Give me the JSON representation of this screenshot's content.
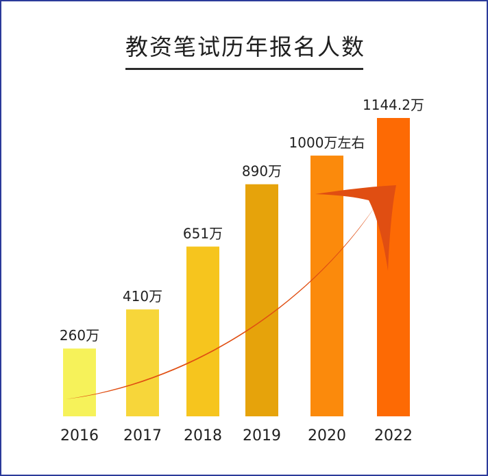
{
  "chart_data": {
    "type": "bar",
    "title": "教资笔试历年报名人数",
    "categories": [
      "2016",
      "2017",
      "2018",
      "2019",
      "2020",
      "2022"
    ],
    "values": [
      260,
      410,
      651,
      890,
      1000,
      1144.2
    ],
    "data_labels": [
      "260万",
      "410万",
      "651万",
      "890万",
      "1000万左右",
      "1144.2万"
    ],
    "colors": [
      "#f6f25a",
      "#f7d63a",
      "#f6c51e",
      "#e6a30b",
      "#fb8a0c",
      "#fd6a04"
    ],
    "arrow_color": "#e04e12",
    "ylim": [
      0,
      1144.2
    ],
    "grid": false,
    "legend": "none"
  }
}
